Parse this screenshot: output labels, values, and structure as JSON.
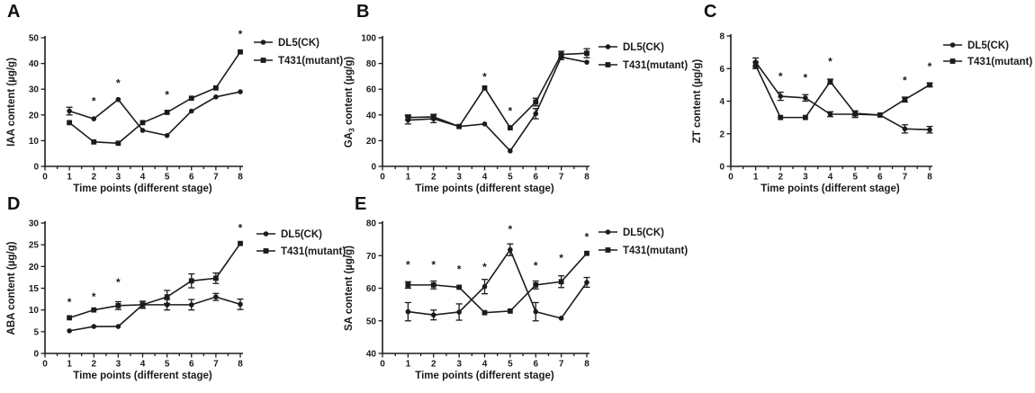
{
  "figure": {
    "background": "#ffffff",
    "line_color": "#1b1b1b",
    "significance_symbol": "*",
    "xlabel": "Time points (different stage)",
    "legend_labels": [
      "DL5(CK)",
      "T431(mutant)"
    ]
  },
  "chart_data": [
    {
      "id": "A",
      "type": "line",
      "ylabel_parts": [
        {
          "text": "IAA content (µg/g)",
          "sub": false
        }
      ],
      "xlabel": "Time points (different stage)",
      "x": [
        1,
        2,
        3,
        4,
        5,
        6,
        7,
        8
      ],
      "xlim": [
        0,
        8
      ],
      "ylim": [
        0,
        50
      ],
      "ytick_step": 10,
      "series": [
        {
          "name": "DL5(CK)",
          "marker": "circle",
          "values": [
            21.5,
            18.5,
            26,
            14,
            12,
            21.5,
            27,
            29
          ],
          "err": [
            1.5,
            0,
            0,
            0,
            0,
            0,
            0,
            0
          ]
        },
        {
          "name": "T431(mutant)",
          "marker": "square",
          "values": [
            17,
            9.5,
            9,
            17,
            21,
            26.5,
            30.5,
            44.5
          ],
          "err": [
            0,
            0,
            0,
            0,
            0,
            0,
            0,
            0
          ]
        }
      ],
      "asterisks": [
        {
          "x": 2,
          "y": 25.5
        },
        {
          "x": 3,
          "y": 32.5
        },
        {
          "x": 5,
          "y": 28
        },
        {
          "x": 8,
          "y": 51.5
        }
      ]
    },
    {
      "id": "B",
      "type": "line",
      "ylabel_parts": [
        {
          "text": "GA",
          "sub": false
        },
        {
          "text": "3",
          "sub": true
        },
        {
          "text": " content (µg/g)",
          "sub": false
        }
      ],
      "xlabel": "Time points (different stage)",
      "x": [
        1,
        2,
        3,
        4,
        5,
        6,
        7,
        8
      ],
      "xlim": [
        0,
        8
      ],
      "ylim": [
        0,
        100
      ],
      "ytick_step": 20,
      "series": [
        {
          "name": "DL5(CK)",
          "marker": "circle",
          "values": [
            36,
            37,
            31,
            33,
            12,
            41,
            85,
            81
          ],
          "err": [
            3,
            3,
            0,
            0,
            0,
            4,
            2,
            0
          ]
        },
        {
          "name": "T431(mutant)",
          "marker": "square",
          "values": [
            38,
            38.5,
            31,
            61,
            30,
            50,
            87,
            88
          ],
          "err": [
            2,
            2,
            0,
            0,
            0,
            3,
            2.5,
            3.5
          ]
        }
      ],
      "asterisks": [
        {
          "x": 4,
          "y": 70
        },
        {
          "x": 5,
          "y": 43.5
        }
      ]
    },
    {
      "id": "C",
      "type": "line",
      "ylabel_parts": [
        {
          "text": "ZT content (µg/g)",
          "sub": false
        }
      ],
      "xlabel": "Time points (different stage)",
      "x": [
        1,
        2,
        3,
        4,
        5,
        6,
        7,
        8
      ],
      "xlim": [
        0,
        8
      ],
      "ylim": [
        0,
        8
      ],
      "ytick_step": 2,
      "series": [
        {
          "name": "DL5(CK)",
          "marker": "circle",
          "values": [
            6.4,
            4.3,
            4.2,
            3.2,
            3.2,
            3.15,
            2.3,
            2.25
          ],
          "err": [
            0.25,
            0.25,
            0.2,
            0.15,
            0.2,
            0,
            0.25,
            0.2
          ]
        },
        {
          "name": "T431(mutant)",
          "marker": "square",
          "values": [
            6.2,
            3.0,
            3.0,
            5.2,
            3.25,
            3.15,
            4.1,
            5.0
          ],
          "err": [
            0.2,
            0,
            0,
            0.15,
            0.15,
            0,
            0.15,
            0.12
          ]
        }
      ],
      "asterisks": [
        {
          "x": 2,
          "y": 5.55
        },
        {
          "x": 3,
          "y": 5.45
        },
        {
          "x": 4,
          "y": 6.45
        },
        {
          "x": 7,
          "y": 5.3
        },
        {
          "x": 8,
          "y": 6.15
        }
      ]
    },
    {
      "id": "D",
      "type": "line",
      "ylabel_parts": [
        {
          "text": "ABA content (µg/g)",
          "sub": false
        }
      ],
      "xlabel": "Time points (different stage)",
      "x": [
        1,
        2,
        3,
        4,
        5,
        6,
        7,
        8
      ],
      "xlim": [
        0,
        8
      ],
      "ylim": [
        0,
        30
      ],
      "ytick_step": 5,
      "series": [
        {
          "name": "DL5(CK)",
          "marker": "circle",
          "values": [
            5.2,
            6.2,
            6.2,
            11.2,
            11.2,
            11.2,
            13,
            11.3
          ],
          "err": [
            0,
            0,
            0,
            0.8,
            1.2,
            1.2,
            0.8,
            1.2
          ]
        },
        {
          "name": "T431(mutant)",
          "marker": "square",
          "values": [
            8.2,
            10,
            11,
            11.2,
            13,
            16.7,
            17.3,
            25.3
          ],
          "err": [
            0,
            0,
            0.9,
            0.8,
            1.5,
            1.6,
            1.2,
            0
          ]
        }
      ],
      "asterisks": [
        {
          "x": 1,
          "y": 11.9
        },
        {
          "x": 2,
          "y": 13.1
        },
        {
          "x": 3,
          "y": 16.4
        },
        {
          "x": 8,
          "y": 29
        }
      ]
    },
    {
      "id": "E",
      "type": "line",
      "ylabel_parts": [
        {
          "text": "SA content (µg/g)",
          "sub": false
        }
      ],
      "xlabel": "Time points (different stage)",
      "x": [
        1,
        2,
        3,
        4,
        5,
        6,
        7,
        8
      ],
      "xlim": [
        0,
        8
      ],
      "ylim": [
        40,
        80
      ],
      "ytick_step": 10,
      "series": [
        {
          "name": "DL5(CK)",
          "marker": "circle",
          "values": [
            52.8,
            51.8,
            52.7,
            60.5,
            71.8,
            52.8,
            50.8,
            61.8
          ],
          "err": [
            2.8,
            1.5,
            2.5,
            2.2,
            1.8,
            2.8,
            0,
            1.5
          ]
        },
        {
          "name": "T431(mutant)",
          "marker": "square",
          "values": [
            61,
            61,
            60.3,
            52.5,
            53,
            61,
            62,
            70.7
          ],
          "err": [
            1,
            1.2,
            0,
            0,
            0,
            1.2,
            1.8,
            0
          ]
        }
      ],
      "asterisks": [
        {
          "x": 1,
          "y": 67.3
        },
        {
          "x": 2,
          "y": 67.3
        },
        {
          "x": 3,
          "y": 66
        },
        {
          "x": 4,
          "y": 66.6
        },
        {
          "x": 5,
          "y": 78.2
        },
        {
          "x": 6,
          "y": 67.1
        },
        {
          "x": 7,
          "y": 69.4
        },
        {
          "x": 8,
          "y": 75.8
        }
      ]
    }
  ]
}
